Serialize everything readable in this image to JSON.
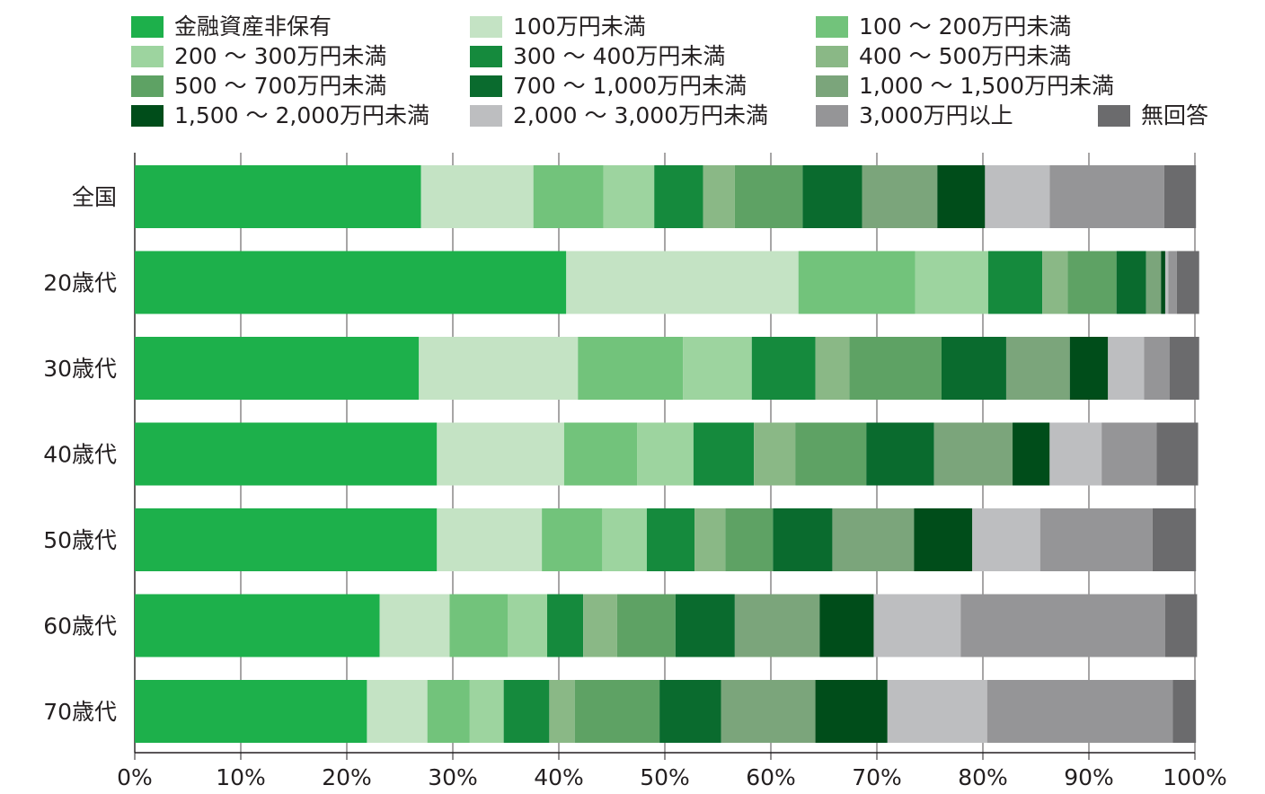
{
  "chart_data": {
    "type": "bar",
    "orientation": "horizontal",
    "stacked": true,
    "percent": true,
    "categories": [
      "全国",
      "20歳代",
      "30歳代",
      "40歳代",
      "50歳代",
      "60歳代",
      "70歳代"
    ],
    "xlim": [
      0,
      100
    ],
    "x_ticks": [
      "0%",
      "10%",
      "20%",
      "30%",
      "40%",
      "50%",
      "60%",
      "70%",
      "80%",
      "90%",
      "100%"
    ],
    "grid": true,
    "legend_position": "top",
    "series": [
      {
        "name": "金融資産非保有",
        "color": "#1db04b",
        "values": [
          27.0,
          40.7,
          26.8,
          28.5,
          28.5,
          23.1,
          21.9
        ]
      },
      {
        "name": "100万円未満",
        "color": "#c4e3c4",
        "values": [
          10.6,
          21.9,
          15.0,
          12.0,
          9.9,
          6.6,
          5.7
        ]
      },
      {
        "name": "100 ～ 200万円未満",
        "color": "#72c37b",
        "values": [
          6.6,
          11.0,
          9.9,
          6.9,
          5.7,
          5.5,
          4.0
        ]
      },
      {
        "name": "200 ～ 300万円未満",
        "color": "#9dd49f",
        "values": [
          4.8,
          6.9,
          6.5,
          5.3,
          4.2,
          3.7,
          3.2
        ]
      },
      {
        "name": "300 ～ 400万円未満",
        "color": "#158a3d",
        "values": [
          4.6,
          5.1,
          6.0,
          5.7,
          4.5,
          3.4,
          4.3
        ]
      },
      {
        "name": "400 ～ 500万円未満",
        "color": "#8ab886",
        "values": [
          3.0,
          2.4,
          3.2,
          3.9,
          2.9,
          3.2,
          2.4
        ]
      },
      {
        "name": "500 ～ 700万円未満",
        "color": "#5ea264",
        "values": [
          6.4,
          4.6,
          8.7,
          6.7,
          4.5,
          5.5,
          8.0
        ]
      },
      {
        "name": "700 ～ 1,000万円未満",
        "color": "#0a6b2e",
        "values": [
          5.6,
          2.8,
          6.1,
          6.4,
          5.6,
          5.6,
          5.8
        ]
      },
      {
        "name": "1,000 ～ 1,500万円未満",
        "color": "#7ba57b",
        "values": [
          7.1,
          1.4,
          6.0,
          7.4,
          7.7,
          8.0,
          8.9
        ]
      },
      {
        "name": "1,500 ～ 2,000万円未満",
        "color": "#004d1a",
        "values": [
          4.5,
          0.4,
          3.6,
          3.5,
          5.5,
          5.1,
          6.8
        ]
      },
      {
        "name": "2,000 ～ 3,000万円未満",
        "color": "#bdbec0",
        "values": [
          6.1,
          0.3,
          3.4,
          4.9,
          6.4,
          8.2,
          9.4
        ]
      },
      {
        "name": "3,000万円以上",
        "color": "#959597",
        "values": [
          10.8,
          0.8,
          2.4,
          5.2,
          10.6,
          19.3,
          17.5
        ]
      },
      {
        "name": "無回答",
        "color": "#6b6b6d",
        "values": [
          3.0,
          2.1,
          2.8,
          3.9,
          4.1,
          3.0,
          2.2
        ]
      }
    ]
  }
}
